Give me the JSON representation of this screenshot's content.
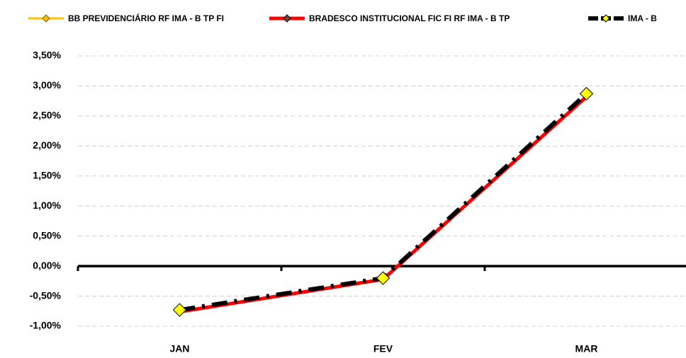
{
  "chart_data": {
    "type": "line",
    "categories": [
      "JAN",
      "FEV",
      "MAR"
    ],
    "series": [
      {
        "name": "BB PREVIDENCIÁRIO RF IMA - B TP FI",
        "color": "#ffc000",
        "values": [
          -0.75,
          -0.22,
          2.83
        ]
      },
      {
        "name": "BRADESCO INSTITUCIONAL FIC FI RF IMA - B TP",
        "color": "#ff0000",
        "values": [
          -0.76,
          -0.22,
          2.82
        ]
      },
      {
        "name": "IMA - B",
        "color": "#000000",
        "values": [
          -0.73,
          -0.2,
          2.87
        ]
      }
    ],
    "ylim": [
      -1,
      3.5
    ],
    "yticks": [
      {
        "value": -1,
        "label": "-1,00%"
      },
      {
        "value": -0.5,
        "label": "-0,50%"
      },
      {
        "value": 0,
        "label": "0,00%"
      },
      {
        "value": 0.5,
        "label": "0,50%"
      },
      {
        "value": 1,
        "label": "1,00%"
      },
      {
        "value": 1.5,
        "label": "1,50%"
      },
      {
        "value": 2,
        "label": "2,00%"
      },
      {
        "value": 2.5,
        "label": "2,50%"
      },
      {
        "value": 3,
        "label": "3,00%"
      },
      {
        "value": 3.5,
        "label": "3,50%"
      }
    ],
    "grid": true
  }
}
